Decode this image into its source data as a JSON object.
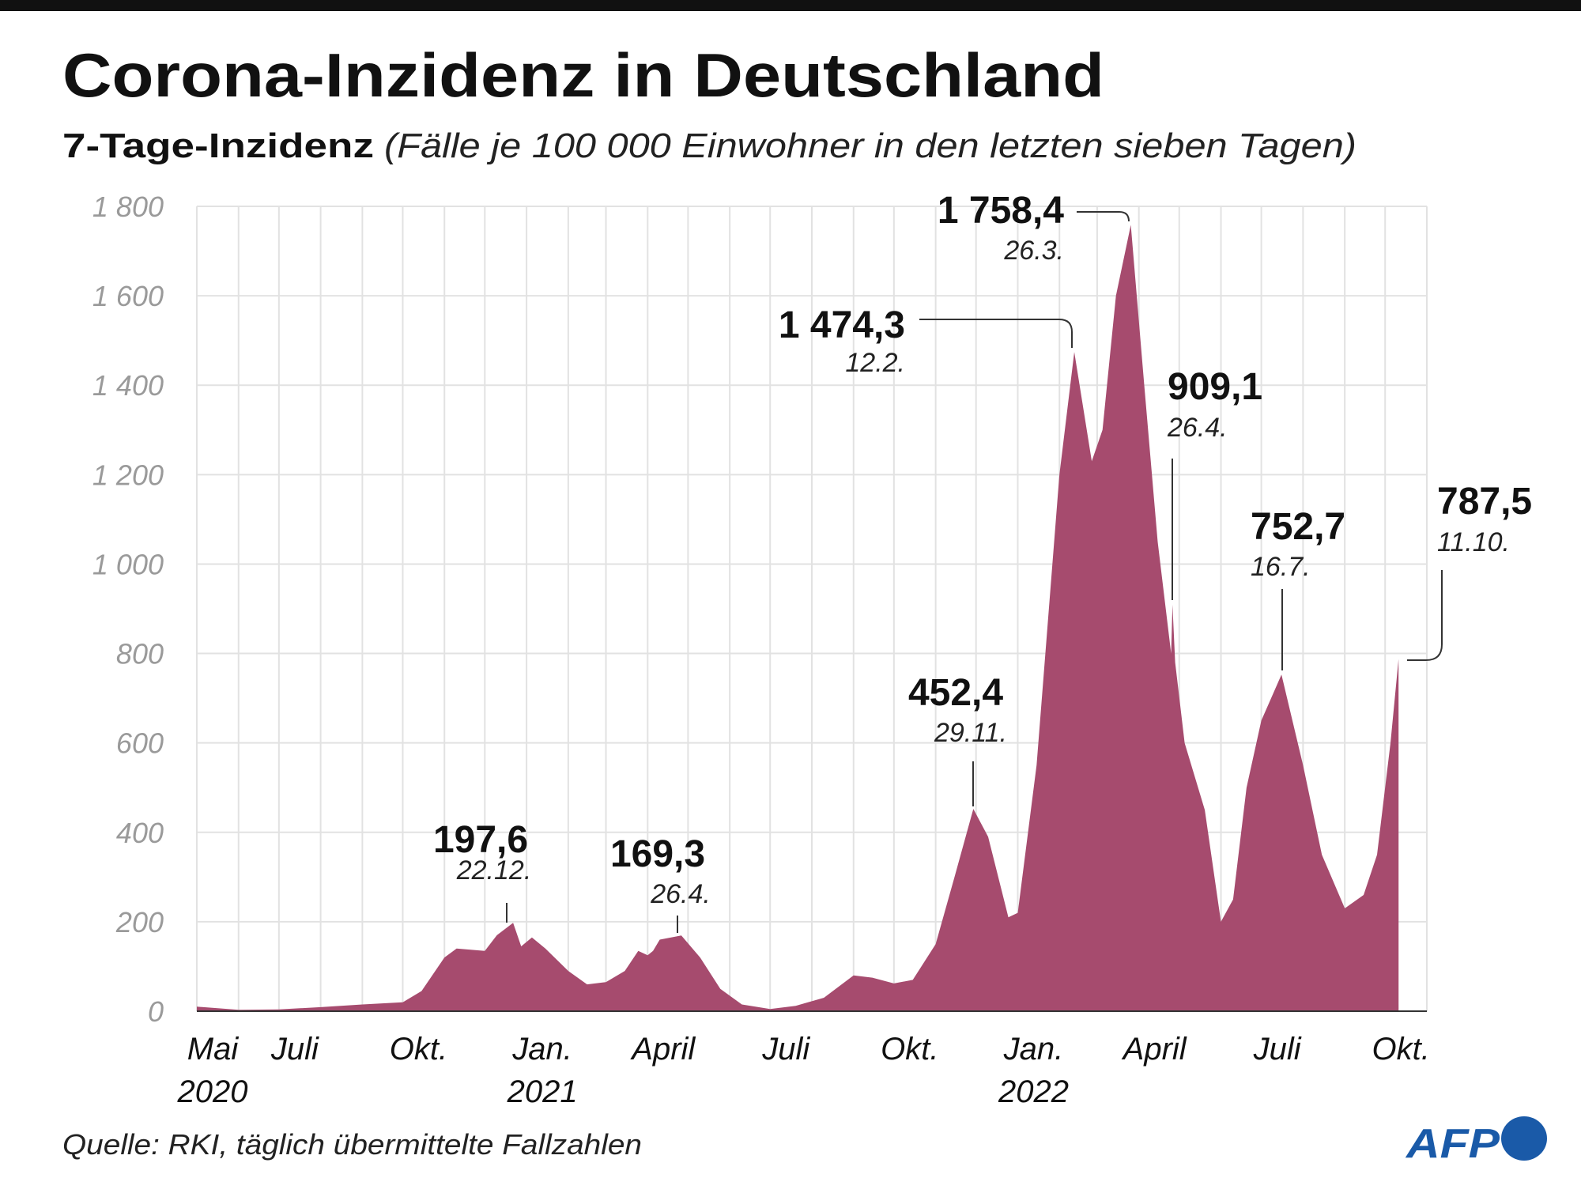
{
  "title": "Corona-Inzidenz in Deutschland",
  "subtitle_bold": "7-Tage-Inzidenz",
  "subtitle_italic": "(Fälle je 100 000 Einwohner in den letzten sieben Tagen)",
  "source": "Quelle: RKI, täglich übermittelte Fallzahlen",
  "logo": "AFP",
  "colors": {
    "fill": "#a64b6e",
    "grid": "#e2e2e2",
    "logo": "#1a5aa8",
    "top_bar": "#111111"
  },
  "chart_data": {
    "type": "area",
    "title": "Corona-Inzidenz in Deutschland",
    "ylim": [
      0,
      1800
    ],
    "xlim": [
      "2020-05-01",
      "2022-11-01"
    ],
    "grid": true,
    "y_ticks": [
      {
        "value": 0,
        "label": "0"
      },
      {
        "value": 200,
        "label": "200"
      },
      {
        "value": 400,
        "label": "400"
      },
      {
        "value": 600,
        "label": "600"
      },
      {
        "value": 800,
        "label": "800"
      },
      {
        "value": 1000,
        "label": "1 000"
      },
      {
        "value": 1200,
        "label": "1 200"
      },
      {
        "value": 1400,
        "label": "1 400"
      },
      {
        "value": 1600,
        "label": "1 600"
      },
      {
        "value": 1800,
        "label": "1 800"
      }
    ],
    "x_ticks": [
      {
        "date": "2020-05-01",
        "label": "Mai",
        "year": "2020"
      },
      {
        "date": "2020-07-01",
        "label": "Juli",
        "year": ""
      },
      {
        "date": "2020-10-01",
        "label": "Okt.",
        "year": ""
      },
      {
        "date": "2021-01-01",
        "label": "Jan.",
        "year": "2021"
      },
      {
        "date": "2021-04-01",
        "label": "April",
        "year": ""
      },
      {
        "date": "2021-07-01",
        "label": "Juli",
        "year": ""
      },
      {
        "date": "2021-10-01",
        "label": "Okt.",
        "year": ""
      },
      {
        "date": "2022-01-01",
        "label": "Jan.",
        "year": "2022"
      },
      {
        "date": "2022-04-01",
        "label": "April",
        "year": ""
      },
      {
        "date": "2022-07-01",
        "label": "Juli",
        "year": ""
      },
      {
        "date": "2022-10-01",
        "label": "Okt.",
        "year": ""
      }
    ],
    "series": [
      {
        "x": [
          "2020-05-01",
          "2020-06-01",
          "2020-07-01",
          "2020-08-01",
          "2020-09-01",
          "2020-10-01",
          "2020-10-15",
          "2020-11-01",
          "2020-11-10",
          "2020-12-01",
          "2020-12-10",
          "2020-12-22",
          "2020-12-28",
          "2021-01-05",
          "2021-01-15",
          "2021-02-01",
          "2021-02-15",
          "2021-03-01",
          "2021-03-15",
          "2021-03-25",
          "2021-04-01",
          "2021-04-05",
          "2021-04-10",
          "2021-04-26",
          "2021-05-10",
          "2021-05-25",
          "2021-06-10",
          "2021-07-01",
          "2021-07-20",
          "2021-08-10",
          "2021-09-01",
          "2021-09-15",
          "2021-10-01",
          "2021-10-15",
          "2021-11-01",
          "2021-11-15",
          "2021-11-29",
          "2021-12-10",
          "2021-12-25",
          "2022-01-01",
          "2022-01-15",
          "2022-02-01",
          "2022-02-12",
          "2022-02-25",
          "2022-03-05",
          "2022-03-15",
          "2022-03-26",
          "2022-04-05",
          "2022-04-15",
          "2022-04-25",
          "2022-04-26",
          "2022-04-28",
          "2022-05-05",
          "2022-05-20",
          "2022-06-01",
          "2022-06-10",
          "2022-06-20",
          "2022-07-01",
          "2022-07-16",
          "2022-08-01",
          "2022-08-15",
          "2022-09-01",
          "2022-09-15",
          "2022-09-25",
          "2022-10-05",
          "2022-10-11"
        ],
        "y": [
          10,
          3,
          4,
          9,
          15,
          20,
          45,
          120,
          140,
          135,
          170,
          197.6,
          145,
          165,
          140,
          90,
          60,
          65,
          90,
          135,
          125,
          135,
          160,
          169.3,
          120,
          50,
          15,
          5,
          12,
          30,
          80,
          75,
          62,
          70,
          150,
          300,
          452.4,
          390,
          210,
          220,
          550,
          1200,
          1474.3,
          1230,
          1300,
          1600,
          1758.4,
          1400,
          1050,
          800,
          909.1,
          780,
          600,
          450,
          200,
          250,
          500,
          650,
          752.7,
          550,
          350,
          230,
          260,
          350,
          600,
          787.5
        ]
      }
    ],
    "annotations": [
      {
        "value": "197,6",
        "date": "22.12.",
        "x": "2020-12-22",
        "y": 197.6
      },
      {
        "value": "169,3",
        "date": "26.4.",
        "x": "2021-04-26",
        "y": 169.3
      },
      {
        "value": "452,4",
        "date": "29.11.",
        "x": "2021-11-29",
        "y": 452.4
      },
      {
        "value": "1 474,3",
        "date": "12.2.",
        "x": "2022-02-12",
        "y": 1474.3
      },
      {
        "value": "1 758,4",
        "date": "26.3.",
        "x": "2022-03-26",
        "y": 1758.4
      },
      {
        "value": "909,1",
        "date": "26.4.",
        "x": "2022-04-26",
        "y": 909.1
      },
      {
        "value": "752,7",
        "date": "16.7.",
        "x": "2022-07-16",
        "y": 752.7
      },
      {
        "value": "787,5",
        "date": "11.10.",
        "x": "2022-10-11",
        "y": 787.5
      }
    ]
  }
}
